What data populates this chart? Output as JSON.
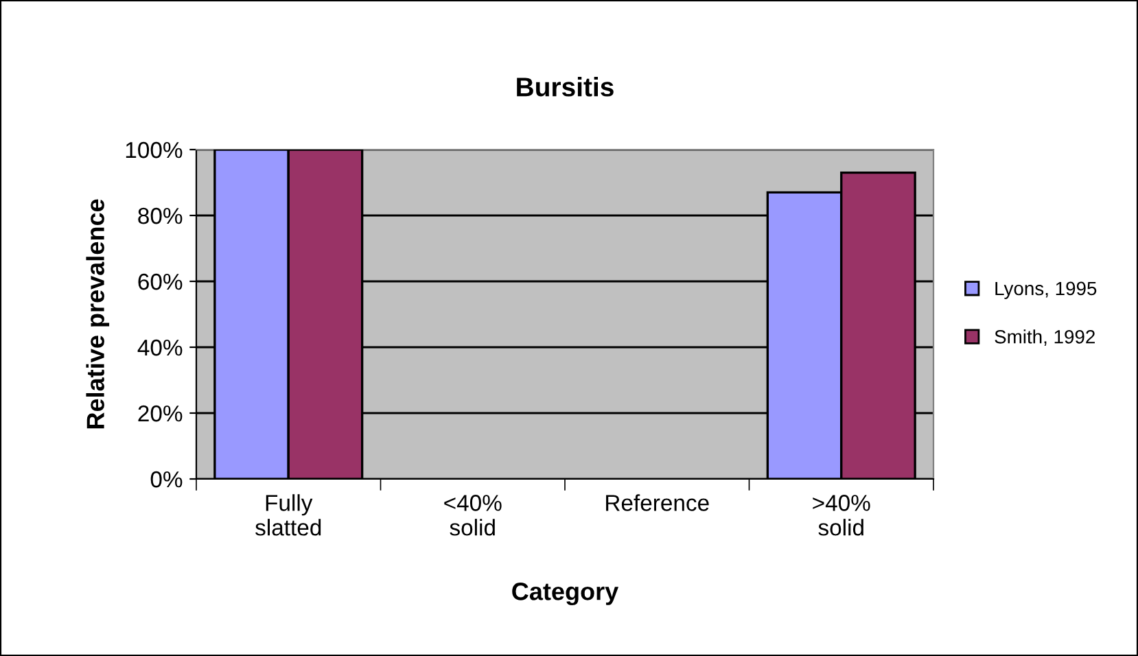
{
  "chart_data": {
    "type": "bar",
    "title": "Bursitis",
    "xlabel": "Category",
    "ylabel": "Relative prevalence",
    "categories": [
      "Fully\nslatted",
      "<40%\nsolid",
      "Reference",
      ">40%\nsolid"
    ],
    "series": [
      {
        "name": "Lyons, 1995",
        "color": "#9999ff",
        "values": [
          100,
          null,
          null,
          87
        ]
      },
      {
        "name": "Smith, 1992",
        "color": "#993366",
        "values": [
          100,
          null,
          null,
          93
        ]
      }
    ],
    "ylim": [
      0,
      100
    ],
    "yticks": [
      {
        "value": 0,
        "label": "0%"
      },
      {
        "value": 20,
        "label": "20%"
      },
      {
        "value": 40,
        "label": "40%"
      },
      {
        "value": 60,
        "label": "60%"
      },
      {
        "value": 80,
        "label": "80%"
      },
      {
        "value": 100,
        "label": "100%"
      }
    ],
    "grid": "y",
    "legend": "right"
  }
}
